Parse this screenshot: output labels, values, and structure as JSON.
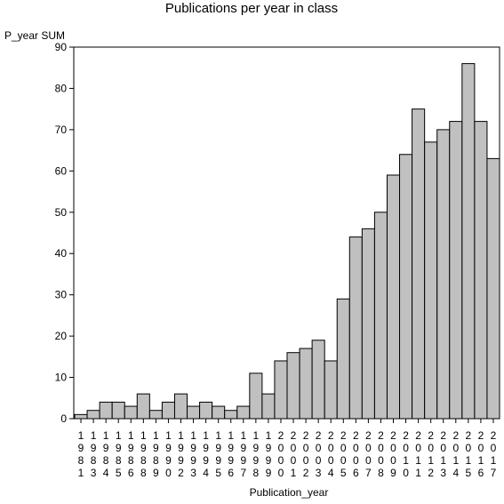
{
  "chart_data": {
    "type": "bar",
    "title": "Publications per year in class",
    "ylabel": "P_year SUM",
    "xlabel": "Publication_year",
    "ylim": [
      0,
      90
    ],
    "yticks": [
      0,
      10,
      20,
      30,
      40,
      50,
      60,
      70,
      80,
      90
    ],
    "categories": [
      "1981",
      "1983",
      "1984",
      "1985",
      "1986",
      "1988",
      "1989",
      "1990",
      "1992",
      "1993",
      "1994",
      "1995",
      "1996",
      "1997",
      "1998",
      "1999",
      "2000",
      "2001",
      "2002",
      "2003",
      "2004",
      "2005",
      "2006",
      "2007",
      "2008",
      "2009",
      "2010",
      "2011",
      "2012",
      "2013",
      "2014",
      "2015",
      "2016",
      "2017"
    ],
    "values": [
      1,
      2,
      4,
      4,
      3,
      6,
      2,
      4,
      6,
      3,
      4,
      3,
      2,
      3,
      11,
      6,
      14,
      16,
      17,
      19,
      14,
      29,
      44,
      46,
      50,
      59,
      64,
      75,
      67,
      70,
      72,
      86,
      72,
      63
    ],
    "bar_color": "#c0c0c0",
    "grid": false,
    "legend": "none"
  }
}
